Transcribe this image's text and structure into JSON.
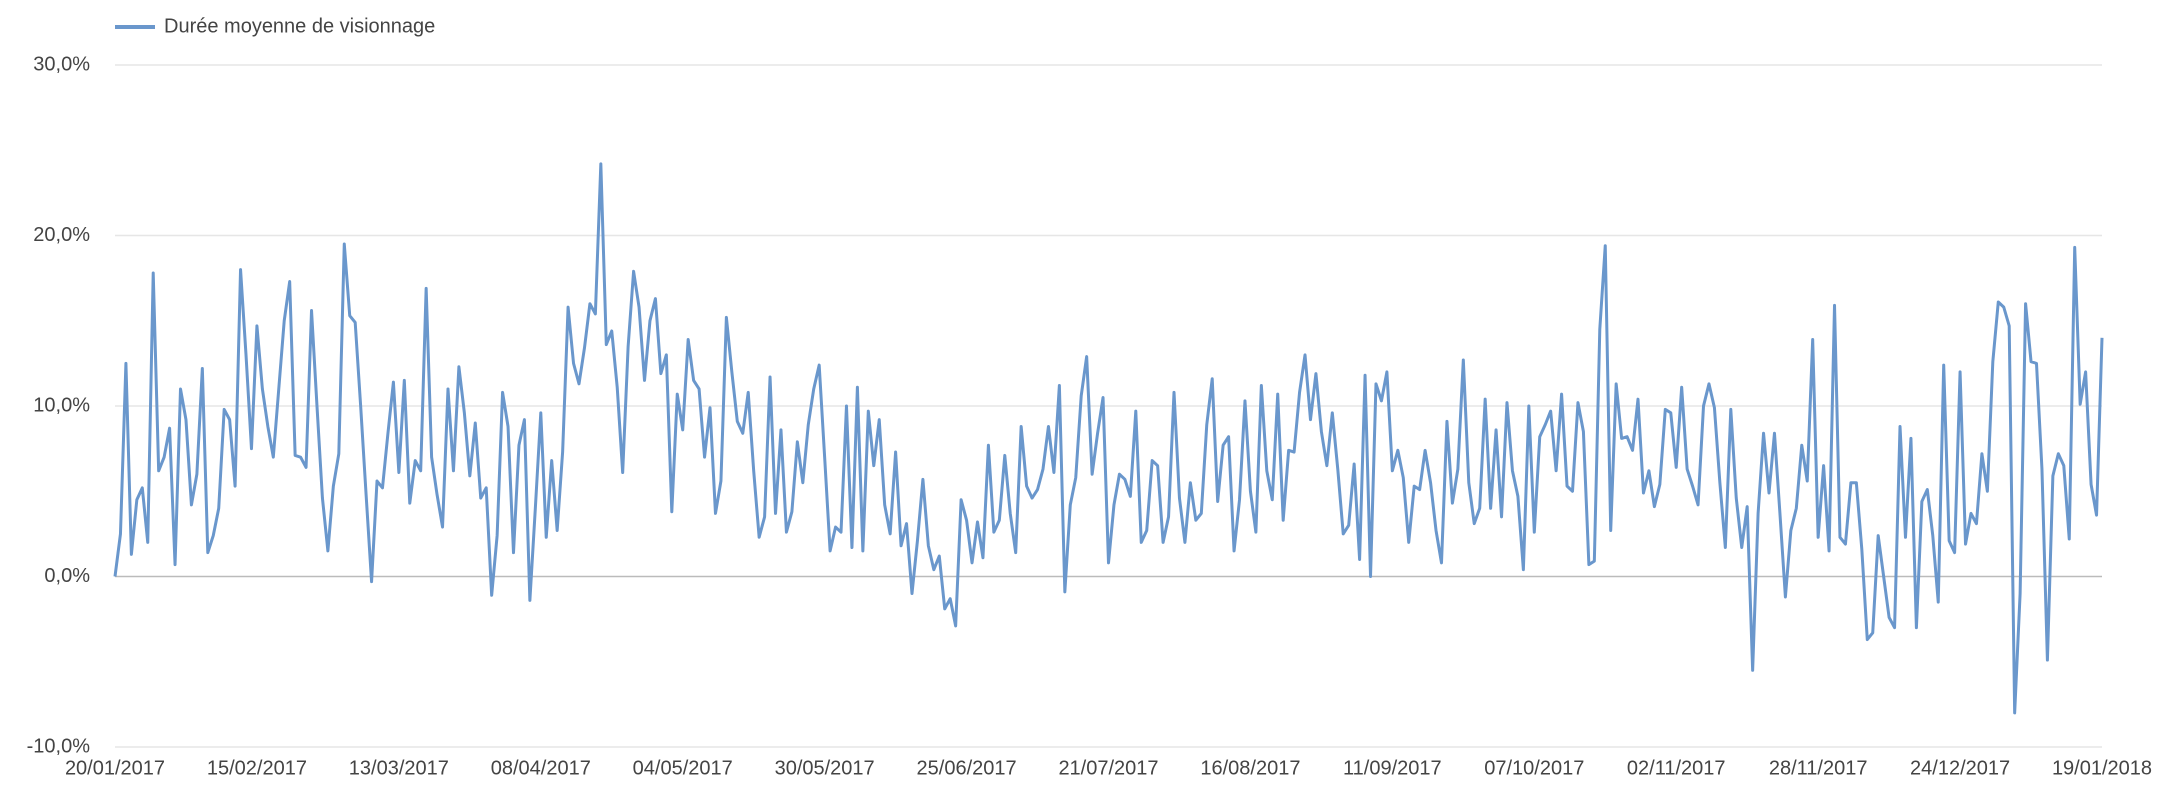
{
  "chart_data": {
    "type": "line",
    "categories": [
      "20/01/2017",
      null,
      null,
      null,
      null,
      null,
      null,
      null,
      null,
      null,
      null,
      null,
      null,
      null,
      null,
      null,
      null,
      null,
      null,
      null,
      null,
      null,
      null,
      null,
      null,
      null,
      "15/02/2017",
      null,
      null,
      null,
      null,
      null,
      null,
      null,
      null,
      null,
      null,
      null,
      null,
      null,
      null,
      null,
      null,
      null,
      null,
      null,
      null,
      null,
      null,
      null,
      null,
      null,
      "13/03/2017",
      null,
      null,
      null,
      null,
      null,
      null,
      null,
      null,
      null,
      null,
      null,
      null,
      null,
      null,
      null,
      null,
      null,
      null,
      null,
      null,
      null,
      null,
      null,
      null,
      null,
      "08/04/2017",
      null,
      null,
      null,
      null,
      null,
      null,
      null,
      null,
      null,
      null,
      null,
      null,
      null,
      null,
      null,
      null,
      null,
      null,
      null,
      null,
      null,
      null,
      null,
      null,
      null,
      "04/05/2017",
      null,
      null,
      null,
      null,
      null,
      null,
      null,
      null,
      null,
      null,
      null,
      null,
      null,
      null,
      null,
      null,
      null,
      null,
      null,
      null,
      null,
      null,
      null,
      null,
      null,
      "30/05/2017",
      null,
      null,
      null,
      null,
      null,
      null,
      null,
      null,
      null,
      null,
      null,
      null,
      null,
      null,
      null,
      null,
      null,
      null,
      null,
      null,
      null,
      null,
      null,
      null,
      null,
      "25/06/2017",
      null,
      null,
      null,
      null,
      null,
      null,
      null,
      null,
      null,
      null,
      null,
      null,
      null,
      null,
      null,
      null,
      null,
      null,
      null,
      null,
      null,
      null,
      null,
      null,
      null,
      "21/07/2017",
      null,
      null,
      null,
      null,
      null,
      null,
      null,
      null,
      null,
      null,
      null,
      null,
      null,
      null,
      null,
      null,
      null,
      null,
      null,
      null,
      null,
      null,
      null,
      null,
      null,
      "16/08/2017",
      null,
      null,
      null,
      null,
      null,
      null,
      null,
      null,
      null,
      null,
      null,
      null,
      null,
      null,
      null,
      null,
      null,
      null,
      null,
      null,
      null,
      null,
      null,
      null,
      null,
      "11/09/2017",
      null,
      null,
      null,
      null,
      null,
      null,
      null,
      null,
      null,
      null,
      null,
      null,
      null,
      null,
      null,
      null,
      null,
      null,
      null,
      null,
      null,
      null,
      null,
      null,
      null,
      "07/10/2017",
      null,
      null,
      null,
      null,
      null,
      null,
      null,
      null,
      null,
      null,
      null,
      null,
      null,
      null,
      null,
      null,
      null,
      null,
      null,
      null,
      null,
      null,
      null,
      null,
      null,
      "02/11/2017",
      null,
      null,
      null,
      null,
      null,
      null,
      null,
      null,
      null,
      null,
      null,
      null,
      null,
      null,
      null,
      null,
      null,
      null,
      null,
      null,
      null,
      null,
      null,
      null,
      null,
      "28/11/2017",
      null,
      null,
      null,
      null,
      null,
      null,
      null,
      null,
      null,
      null,
      null,
      null,
      null,
      null,
      null,
      null,
      null,
      null,
      null,
      null,
      null,
      null,
      null,
      null,
      null,
      "24/12/2017",
      null,
      null,
      null,
      null,
      null,
      null,
      null,
      null,
      null,
      null,
      null,
      null,
      null,
      null,
      null,
      null,
      null,
      null,
      null,
      null,
      null,
      null,
      null,
      null,
      null,
      "19/01/2018"
    ],
    "series": [
      {
        "name": "Durée moyenne de visionnage",
        "color": "#6a97cc",
        "values": [
          0,
          2.5,
          12.5,
          1.3,
          4.5,
          5.2,
          2,
          17.8,
          6.2,
          7,
          8.7,
          0.7,
          11,
          9.2,
          4.2,
          6,
          12.2,
          1.4,
          2.4,
          4,
          9.8,
          9.2,
          5.3,
          18,
          13,
          7.5,
          14.7,
          11,
          8.8,
          7,
          11,
          15,
          17.3,
          7.1,
          7,
          6.4,
          15.6,
          10,
          4.6,
          1.5,
          5.3,
          7.2,
          19.5,
          15.3,
          14.9,
          10,
          4.8,
          -0.3,
          5.6,
          5.2,
          8.4,
          11.4,
          6.1,
          11.5,
          4.3,
          6.8,
          6.2,
          16.9,
          7,
          4.8,
          2.9,
          11,
          6.2,
          12.3,
          9.6,
          5.9,
          9,
          4.6,
          5.2,
          -1.1,
          2.4,
          10.8,
          8.8,
          1.4,
          7.7,
          9.2,
          -1.4,
          4,
          9.6,
          2.3,
          6.8,
          2.7,
          7.3,
          15.8,
          12.5,
          11.3,
          13.4,
          16,
          15.4,
          24.2,
          13.6,
          14.4,
          11.1,
          6.1,
          13.5,
          17.9,
          15.8,
          11.5,
          15,
          16.3,
          11.9,
          13,
          3.8,
          10.7,
          8.6,
          13.9,
          11.5,
          11,
          7,
          9.9,
          3.7,
          5.6,
          15.2,
          12,
          9.1,
          8.4,
          10.8,
          6.2,
          2.3,
          3.5,
          11.7,
          3.7,
          8.6,
          2.6,
          3.8,
          7.9,
          5.5,
          8.9,
          11,
          12.4,
          7,
          1.5,
          2.9,
          2.6,
          10,
          1.7,
          11.1,
          1.5,
          9.7,
          6.5,
          9.2,
          4.2,
          2.5,
          7.3,
          1.8,
          3.1,
          -1,
          2.1,
          5.7,
          1.8,
          0.4,
          1.2,
          -1.9,
          -1.3,
          -2.9,
          4.5,
          3.3,
          0.8,
          3.2,
          1.1,
          7.7,
          2.6,
          3.3,
          7.1,
          3.7,
          1.4,
          8.8,
          5.3,
          4.6,
          5.1,
          6.3,
          8.8,
          6.1,
          11.2,
          -0.9,
          4.2,
          5.8,
          10.6,
          12.9,
          6,
          8.4,
          10.5,
          0.8,
          4.2,
          6,
          5.7,
          4.7,
          9.7,
          2,
          2.7,
          6.8,
          6.5,
          2,
          3.5,
          10.8,
          4.6,
          2,
          5.5,
          3.3,
          3.7,
          8.9,
          11.6,
          4.4,
          7.7,
          8.2,
          1.5,
          4.5,
          10.3,
          5,
          2.6,
          11.2,
          6.2,
          4.5,
          10.7,
          3.3,
          7.4,
          7.3,
          10.8,
          13,
          9.2,
          11.9,
          8.5,
          6.5,
          9.6,
          6.3,
          2.5,
          3,
          6.6,
          1,
          11.8,
          0,
          11.3,
          10.3,
          12,
          6.2,
          7.4,
          5.8,
          2,
          5.3,
          5.1,
          7.4,
          5.5,
          2.7,
          0.8,
          9.1,
          4.3,
          6.3,
          12.7,
          5.5,
          3.1,
          4,
          10.4,
          4,
          8.6,
          3.5,
          10.2,
          6.2,
          4.7,
          0.4,
          10,
          2.6,
          8.2,
          8.9,
          9.7,
          6.2,
          10.7,
          5.3,
          5,
          10.2,
          8.5,
          0.7,
          0.9,
          14.5,
          19.4,
          2.7,
          11.3,
          8.1,
          8.2,
          7.4,
          10.4,
          4.9,
          6.2,
          4.1,
          5.4,
          9.8,
          9.6,
          6.4,
          11.1,
          6.3,
          5.3,
          4.2,
          10,
          11.3,
          9.9,
          5.5,
          1.7,
          9.8,
          4.6,
          1.7,
          4.1,
          -5.5,
          3.7,
          8.4,
          4.9,
          8.4,
          3.7,
          -1.2,
          2.7,
          4,
          7.7,
          5.6,
          13.9,
          2.3,
          6.5,
          1.5,
          15.9,
          2.3,
          1.9,
          5.5,
          5.5,
          1.6,
          -3.7,
          -3.3,
          2.4,
          0,
          -2.4,
          -3,
          8.8,
          2.3,
          8.1,
          -3,
          4.4,
          5.1,
          2.4,
          -1.5,
          12.4,
          2.1,
          1.4,
          12,
          1.9,
          3.7,
          3.1,
          7.2,
          5,
          12.6,
          16.1,
          15.8,
          14.7,
          -8,
          -1,
          16,
          12.6,
          12.5,
          6.3,
          -4.9,
          5.9,
          7.2,
          6.5,
          2.2,
          19.3,
          10.1,
          12,
          5.4,
          3.6,
          14
        ]
      }
    ],
    "ylim": [
      -10,
      30
    ],
    "yticks": [
      {
        "value": -10,
        "label": "-10,0%"
      },
      {
        "value": 0,
        "label": "0,0%"
      },
      {
        "value": 10,
        "label": "10,0%"
      },
      {
        "value": 20,
        "label": "20,0%"
      },
      {
        "value": 30,
        "label": "30,0%"
      }
    ],
    "grid": true,
    "legend": "top-left"
  }
}
